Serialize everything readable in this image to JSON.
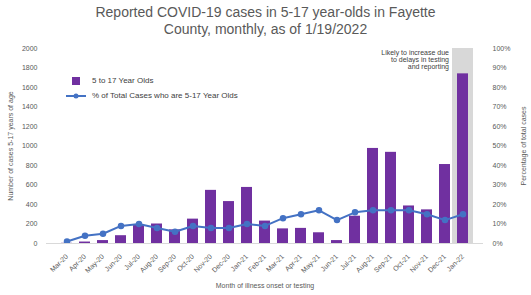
{
  "chart_data": {
    "type": "bar",
    "title": "Reported COVID-19 cases in 5-17 year-olds in Fayette County, monthly, as of 1/19/2022",
    "x_label": "Month of illness onset or testing",
    "y_label": "Number of cases 5-17 years of age",
    "y2_label": "Percentage of total cases",
    "categories": [
      "Mar-20",
      "Apr-20",
      "May-20",
      "Jun-20",
      "Jul-20",
      "Aug-20",
      "Sep-20",
      "Oct-20",
      "Nov-20",
      "Dec-20",
      "Jan-21",
      "Feb-21",
      "Mar-21",
      "Apr-21",
      "May-21",
      "Jun-21",
      "Jul-21",
      "Aug-21",
      "Sep-21",
      "Oct-21",
      "Nov-21",
      "Dec-21",
      "Jan-22"
    ],
    "series": [
      {
        "name": "5 to 17 Year Olds",
        "type": "bar",
        "color": "#7030a0",
        "values": [
          2,
          15,
          30,
          80,
          190,
          200,
          140,
          250,
          545,
          430,
          575,
          230,
          150,
          155,
          110,
          30,
          280,
          975,
          935,
          385,
          345,
          810,
          1740
        ]
      },
      {
        "name": "% of Total Cases who are 5-17 Year Olds",
        "type": "line",
        "axis": "y2",
        "color": "#4472c4",
        "marker": "circle",
        "line_style": "solid",
        "values": [
          1,
          4,
          5,
          9,
          10,
          8,
          6,
          9,
          8,
          8,
          10,
          9,
          13,
          15,
          17,
          12,
          16,
          17,
          17,
          17,
          15,
          12,
          15
        ]
      }
    ],
    "ylim": [
      0,
      2000
    ],
    "yticks": [
      0,
      200,
      400,
      600,
      800,
      1000,
      1200,
      1400,
      1600,
      1800,
      2000
    ],
    "y2lim": [
      0,
      100
    ],
    "y2ticks": [
      {
        "value": 0,
        "label": "0%"
      },
      {
        "value": 10,
        "label": "10%"
      },
      {
        "value": 20,
        "label": "20%"
      },
      {
        "value": 30,
        "label": "30%"
      },
      {
        "value": 40,
        "label": "40%"
      },
      {
        "value": 50,
        "label": "50%"
      },
      {
        "value": 60,
        "label": "60%"
      },
      {
        "value": 70,
        "label": "70%"
      },
      {
        "value": 80,
        "label": "80%"
      },
      {
        "value": 90,
        "label": "90%"
      },
      {
        "value": 100,
        "label": "100%"
      }
    ],
    "annotations": [
      {
        "text": "Likely to increase due to delays in testing and reporting",
        "x": "Jan-22"
      }
    ],
    "legend": "top-left",
    "grid": false
  }
}
